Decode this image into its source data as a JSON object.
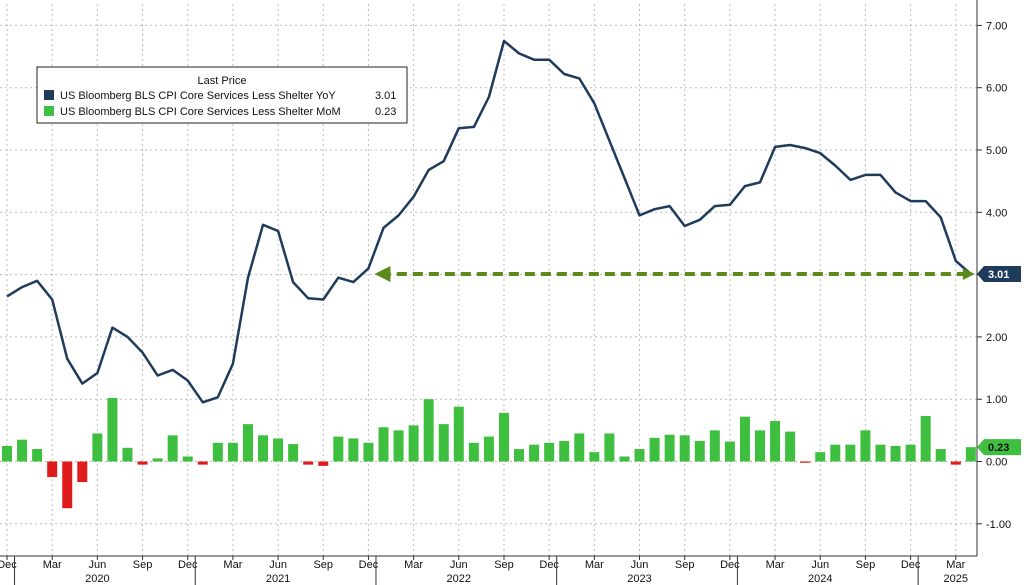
{
  "chart_data": {
    "type": "bar+line",
    "legend": {
      "title": "Last Price",
      "placement": "top-left",
      "entries": [
        {
          "key": "yoy",
          "label": "US Bloomberg BLS CPI Core Services Less Shelter YoY",
          "last": "3.01",
          "color": "#1f3b5c"
        },
        {
          "key": "mom",
          "label": "US Bloomberg BLS CPI Core Services Less Shelter MoM",
          "last": "0.23",
          "color": "#3fbf3f"
        }
      ]
    },
    "x_axis": {
      "start": "2019-12",
      "end": "2025-04",
      "month_ticks": [
        {
          "date": "2019-12",
          "label": "Dec"
        },
        {
          "date": "2020-03",
          "label": "Mar"
        },
        {
          "date": "2020-06",
          "label": "Jun"
        },
        {
          "date": "2020-09",
          "label": "Sep"
        },
        {
          "date": "2020-12",
          "label": "Dec"
        },
        {
          "date": "2021-03",
          "label": "Mar"
        },
        {
          "date": "2021-06",
          "label": "Jun"
        },
        {
          "date": "2021-09",
          "label": "Sep"
        },
        {
          "date": "2021-12",
          "label": "Dec"
        },
        {
          "date": "2022-03",
          "label": "Mar"
        },
        {
          "date": "2022-06",
          "label": "Jun"
        },
        {
          "date": "2022-09",
          "label": "Sep"
        },
        {
          "date": "2022-12",
          "label": "Dec"
        },
        {
          "date": "2023-03",
          "label": "Mar"
        },
        {
          "date": "2023-06",
          "label": "Jun"
        },
        {
          "date": "2023-09",
          "label": "Sep"
        },
        {
          "date": "2023-12",
          "label": "Dec"
        },
        {
          "date": "2024-03",
          "label": "Mar"
        },
        {
          "date": "2024-06",
          "label": "Jun"
        },
        {
          "date": "2024-09",
          "label": "Sep"
        },
        {
          "date": "2024-12",
          "label": "Dec"
        },
        {
          "date": "2025-03",
          "label": "Mar"
        }
      ],
      "year_labels": [
        {
          "date": "2020-06",
          "label": "2020"
        },
        {
          "date": "2021-06",
          "label": "2021"
        },
        {
          "date": "2022-06",
          "label": "2022"
        },
        {
          "date": "2023-06",
          "label": "2023"
        },
        {
          "date": "2024-06",
          "label": "2024"
        },
        {
          "date": "2025-03",
          "label": "2025"
        }
      ]
    },
    "y_axis": {
      "position": "right",
      "range": [
        -1.5,
        7.35
      ],
      "ticks": [
        {
          "value": 7,
          "label": "7.00"
        },
        {
          "value": 6,
          "label": "6.00"
        },
        {
          "value": 5,
          "label": "5.00"
        },
        {
          "value": 4,
          "label": "4.00"
        },
        {
          "value": 3,
          "label": "3.00"
        },
        {
          "value": 2,
          "label": "2.00"
        },
        {
          "value": 1,
          "label": "1.00"
        },
        {
          "value": 0,
          "label": "0.00"
        },
        {
          "value": -1,
          "label": "-1.00"
        }
      ]
    },
    "grid": true,
    "series": [
      {
        "name": "US Bloomberg BLS CPI Core Services Less Shelter YoY",
        "type": "line",
        "color": "#1f3b5c",
        "points": [
          [
            "2019-12",
            2.65
          ],
          [
            "2020-01",
            2.8
          ],
          [
            "2020-02",
            2.9
          ],
          [
            "2020-03",
            2.6
          ],
          [
            "2020-04",
            1.65
          ],
          [
            "2020-05",
            1.25
          ],
          [
            "2020-06",
            1.42
          ],
          [
            "2020-07",
            2.15
          ],
          [
            "2020-08",
            2.0
          ],
          [
            "2020-09",
            1.75
          ],
          [
            "2020-10",
            1.38
          ],
          [
            "2020-11",
            1.47
          ],
          [
            "2020-12",
            1.3
          ],
          [
            "2021-01",
            0.95
          ],
          [
            "2021-02",
            1.03
          ],
          [
            "2021-03",
            1.57
          ],
          [
            "2021-04",
            2.95
          ],
          [
            "2021-05",
            3.8
          ],
          [
            "2021-06",
            3.7
          ],
          [
            "2021-07",
            2.88
          ],
          [
            "2021-08",
            2.62
          ],
          [
            "2021-09",
            2.6
          ],
          [
            "2021-10",
            2.95
          ],
          [
            "2021-11",
            2.88
          ],
          [
            "2021-12",
            3.1
          ],
          [
            "2022-01",
            3.75
          ],
          [
            "2022-02",
            3.95
          ],
          [
            "2022-03",
            4.25
          ],
          [
            "2022-04",
            4.68
          ],
          [
            "2022-05",
            4.82
          ],
          [
            "2022-06",
            5.35
          ],
          [
            "2022-07",
            5.37
          ],
          [
            "2022-08",
            5.85
          ],
          [
            "2022-09",
            6.75
          ],
          [
            "2022-10",
            6.55
          ],
          [
            "2022-11",
            6.45
          ],
          [
            "2022-12",
            6.45
          ],
          [
            "2023-01",
            6.22
          ],
          [
            "2023-02",
            6.15
          ],
          [
            "2023-03",
            5.75
          ],
          [
            "2023-04",
            5.15
          ],
          [
            "2023-05",
            4.55
          ],
          [
            "2023-06",
            3.95
          ],
          [
            "2023-07",
            4.05
          ],
          [
            "2023-08",
            4.1
          ],
          [
            "2023-09",
            3.78
          ],
          [
            "2023-10",
            3.88
          ],
          [
            "2023-11",
            4.1
          ],
          [
            "2023-12",
            4.12
          ],
          [
            "2024-01",
            4.42
          ],
          [
            "2024-02",
            4.48
          ],
          [
            "2024-03",
            5.05
          ],
          [
            "2024-04",
            5.08
          ],
          [
            "2024-05",
            5.03
          ],
          [
            "2024-06",
            4.95
          ],
          [
            "2024-07",
            4.75
          ],
          [
            "2024-08",
            4.52
          ],
          [
            "2024-09",
            4.6
          ],
          [
            "2024-10",
            4.6
          ],
          [
            "2024-11",
            4.32
          ],
          [
            "2024-12",
            4.18
          ],
          [
            "2025-01",
            4.18
          ],
          [
            "2025-02",
            3.92
          ],
          [
            "2025-03",
            3.22
          ],
          [
            "2025-04",
            3.01
          ]
        ],
        "last_value": "3.01"
      },
      {
        "name": "US Bloomberg BLS CPI Core Services Less Shelter MoM",
        "type": "bar",
        "color_positive": "#3fbf3f",
        "color_negative": "#e01b1b",
        "points": [
          [
            "2019-12",
            0.25
          ],
          [
            "2020-01",
            0.35
          ],
          [
            "2020-02",
            0.2
          ],
          [
            "2020-03",
            -0.25
          ],
          [
            "2020-04",
            -0.75
          ],
          [
            "2020-05",
            -0.33
          ],
          [
            "2020-06",
            0.45
          ],
          [
            "2020-07",
            1.02
          ],
          [
            "2020-08",
            0.22
          ],
          [
            "2020-09",
            -0.05
          ],
          [
            "2020-10",
            0.05
          ],
          [
            "2020-11",
            0.42
          ],
          [
            "2020-12",
            0.08
          ],
          [
            "2021-01",
            -0.05
          ],
          [
            "2021-02",
            0.3
          ],
          [
            "2021-03",
            0.3
          ],
          [
            "2021-04",
            0.6
          ],
          [
            "2021-05",
            0.42
          ],
          [
            "2021-06",
            0.37
          ],
          [
            "2021-07",
            0.28
          ],
          [
            "2021-08",
            -0.05
          ],
          [
            "2021-09",
            -0.07
          ],
          [
            "2021-10",
            0.4
          ],
          [
            "2021-11",
            0.37
          ],
          [
            "2021-12",
            0.3
          ],
          [
            "2022-01",
            0.55
          ],
          [
            "2022-02",
            0.5
          ],
          [
            "2022-03",
            0.58
          ],
          [
            "2022-04",
            1.0
          ],
          [
            "2022-05",
            0.6
          ],
          [
            "2022-06",
            0.88
          ],
          [
            "2022-07",
            0.3
          ],
          [
            "2022-08",
            0.4
          ],
          [
            "2022-09",
            0.78
          ],
          [
            "2022-10",
            0.2
          ],
          [
            "2022-11",
            0.27
          ],
          [
            "2022-12",
            0.3
          ],
          [
            "2023-01",
            0.33
          ],
          [
            "2023-02",
            0.45
          ],
          [
            "2023-03",
            0.15
          ],
          [
            "2023-04",
            0.45
          ],
          [
            "2023-05",
            0.08
          ],
          [
            "2023-06",
            0.2
          ],
          [
            "2023-07",
            0.38
          ],
          [
            "2023-08",
            0.43
          ],
          [
            "2023-09",
            0.42
          ],
          [
            "2023-10",
            0.33
          ],
          [
            "2023-11",
            0.5
          ],
          [
            "2023-12",
            0.32
          ],
          [
            "2024-01",
            0.72
          ],
          [
            "2024-02",
            0.5
          ],
          [
            "2024-03",
            0.65
          ],
          [
            "2024-04",
            0.48
          ],
          [
            "2024-05",
            -0.02
          ],
          [
            "2024-06",
            0.15
          ],
          [
            "2024-07",
            0.27
          ],
          [
            "2024-08",
            0.27
          ],
          [
            "2024-09",
            0.5
          ],
          [
            "2024-10",
            0.27
          ],
          [
            "2024-11",
            0.25
          ],
          [
            "2024-12",
            0.27
          ],
          [
            "2025-01",
            0.73
          ],
          [
            "2025-02",
            0.2
          ],
          [
            "2025-03",
            -0.05
          ],
          [
            "2025-04",
            0.23
          ]
        ],
        "last_value": "0.23"
      }
    ],
    "annotation": {
      "type": "dashed-arrow",
      "color": "#5a8a1a",
      "from": [
        "2025-04",
        3.01
      ],
      "to": [
        "2021-12",
        3.01
      ]
    }
  }
}
